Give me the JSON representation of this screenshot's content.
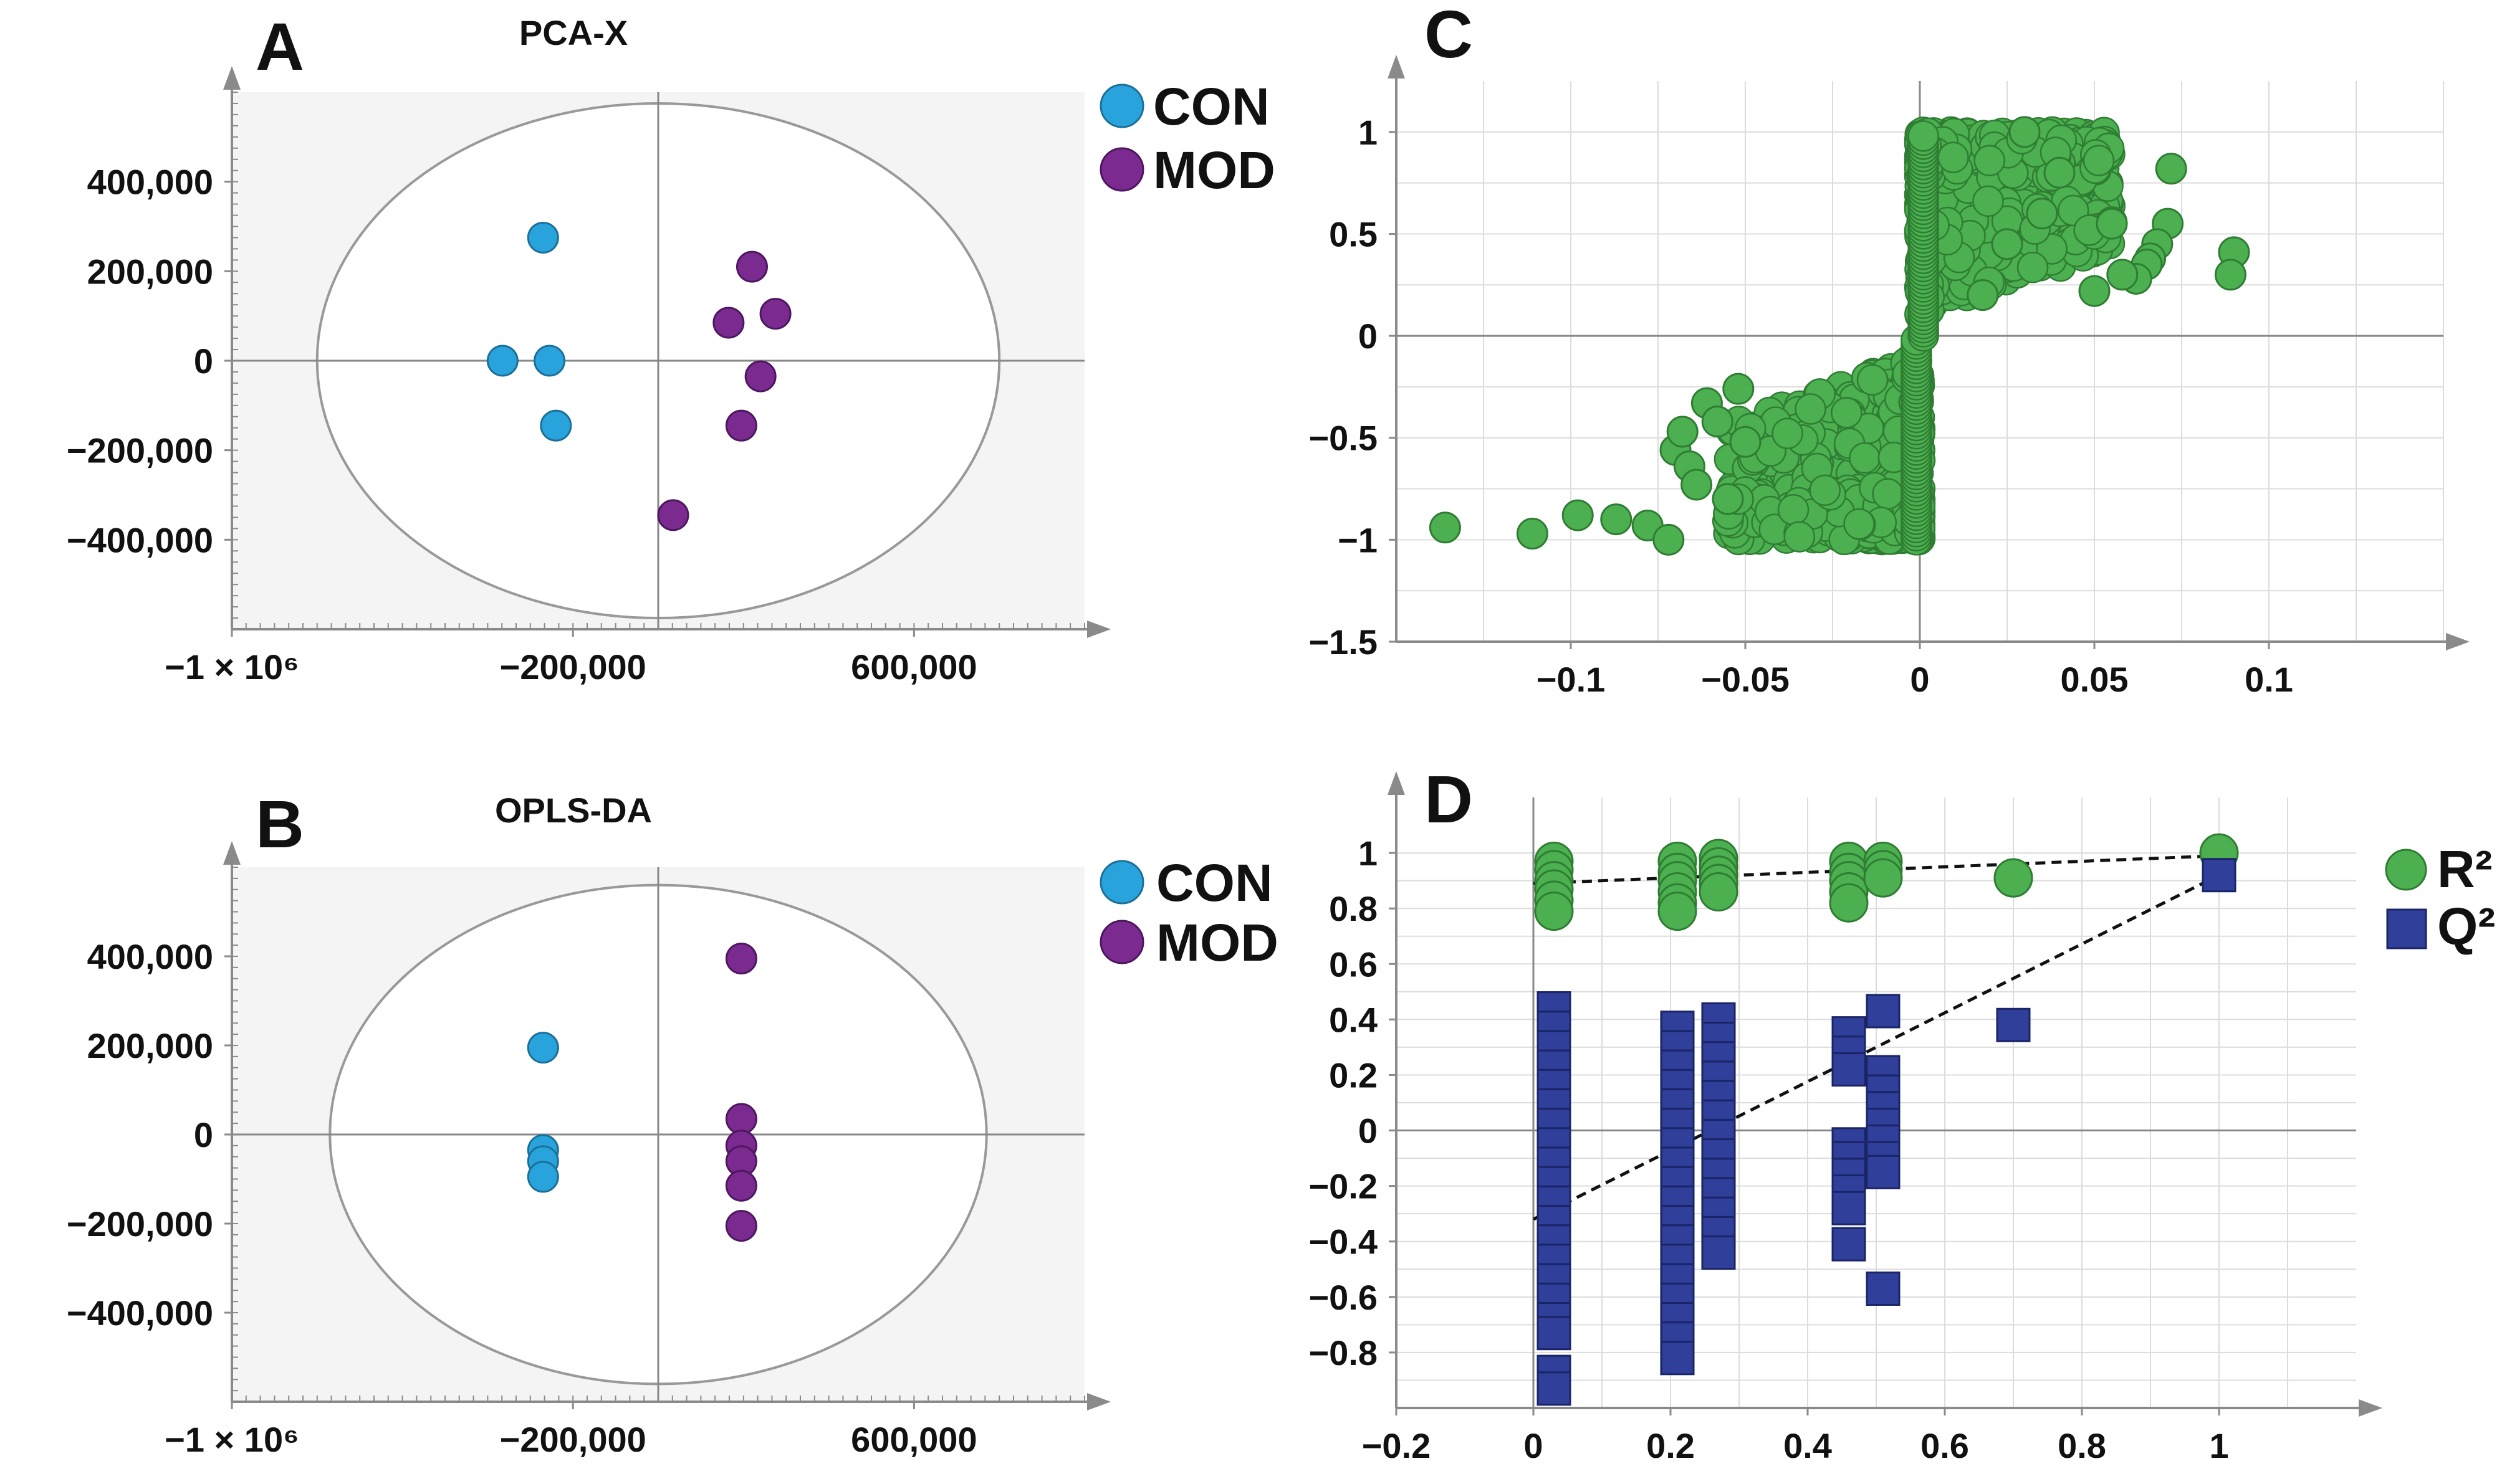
{
  "colors": {
    "con": "#29a3dc",
    "mod": "#7b2a8f",
    "green": "#4caf50",
    "blue": "#2f3f9a",
    "plot_bg": "#f4f4f4",
    "axis": "#8a8a8a"
  },
  "chart_data": [
    {
      "id": "A",
      "letter": "A",
      "type": "scatter",
      "title": "PCA-X",
      "xlim": [
        -1000000,
        1000000
      ],
      "ylim": [
        -600000,
        600000
      ],
      "xticks": [
        {
          "v": -1000000,
          "label": "−1 × 10⁶"
        },
        {
          "v": -200000,
          "label": "−200,000"
        },
        {
          "v": 600000,
          "label": "600,000"
        }
      ],
      "yticks": [
        {
          "v": 400000,
          "label": "400,000"
        },
        {
          "v": 200000,
          "label": "200,000"
        },
        {
          "v": 0,
          "label": "0"
        },
        {
          "v": -200000,
          "label": "−200,000"
        },
        {
          "v": -400000,
          "label": "−400,000"
        }
      ],
      "ellipse": {
        "rx": 800000,
        "ry": 575000
      },
      "legend": [
        "CON",
        "MOD"
      ],
      "series": [
        {
          "name": "CON",
          "points": [
            [
              -270000,
              275000
            ],
            [
              -365000,
              0
            ],
            [
              -255000,
              0
            ],
            [
              -240000,
              -145000
            ]
          ]
        },
        {
          "name": "MOD",
          "points": [
            [
              220000,
              210000
            ],
            [
              165000,
              85000
            ],
            [
              275000,
              105000
            ],
            [
              240000,
              -35000
            ],
            [
              195000,
              -145000
            ],
            [
              35000,
              -345000
            ]
          ]
        }
      ]
    },
    {
      "id": "B",
      "letter": "B",
      "type": "scatter",
      "title": "OPLS-DA",
      "xlim": [
        -1000000,
        1000000
      ],
      "ylim": [
        -600000,
        600000
      ],
      "xticks": [
        {
          "v": -1000000,
          "label": "−1 × 10⁶"
        },
        {
          "v": -200000,
          "label": "−200,000"
        },
        {
          "v": 600000,
          "label": "600,000"
        }
      ],
      "yticks": [
        {
          "v": 400000,
          "label": "400,000"
        },
        {
          "v": 200000,
          "label": "200,000"
        },
        {
          "v": 0,
          "label": "0"
        },
        {
          "v": -200000,
          "label": "−200,000"
        },
        {
          "v": -400000,
          "label": "−400,000"
        }
      ],
      "ellipse": {
        "rx": 770000,
        "ry": 560000
      },
      "legend": [
        "CON",
        "MOD"
      ],
      "series": [
        {
          "name": "CON",
          "points": [
            [
              -270000,
              195000
            ],
            [
              -270000,
              -35000
            ],
            [
              -270000,
              -60000
            ],
            [
              -270000,
              -95000
            ]
          ]
        },
        {
          "name": "MOD",
          "points": [
            [
              195000,
              395000
            ],
            [
              195000,
              35000
            ],
            [
              195000,
              -25000
            ],
            [
              195000,
              -60000
            ],
            [
              195000,
              -115000
            ],
            [
              195000,
              -205000
            ]
          ]
        }
      ]
    },
    {
      "id": "C",
      "letter": "C",
      "type": "scatter",
      "title": "",
      "xlim": [
        -0.15,
        0.15
      ],
      "ylim": [
        -1.5,
        1.25
      ],
      "xticks": [
        {
          "v": -0.1,
          "label": "−0.1"
        },
        {
          "v": -0.05,
          "label": "−0.05"
        },
        {
          "v": 0,
          "label": "0"
        },
        {
          "v": 0.05,
          "label": "0.05"
        },
        {
          "v": 0.1,
          "label": "0.1"
        }
      ],
      "yticks": [
        {
          "v": 1,
          "label": "1"
        },
        {
          "v": 0.5,
          "label": "0.5"
        },
        {
          "v": 0,
          "label": "0"
        },
        {
          "v": -0.5,
          "label": "−0.5"
        },
        {
          "v": -1,
          "label": "−1"
        },
        {
          "v": -1.5,
          "label": "−1.5"
        }
      ],
      "xgrid": [
        -0.125,
        -0.1,
        -0.075,
        -0.05,
        -0.025,
        0.025,
        0.05,
        0.075,
        0.1,
        0.125,
        0.15
      ],
      "ygrid": [
        1,
        0.75,
        0.5,
        0.25,
        -0.25,
        -0.5,
        -0.75,
        -1,
        -1.25
      ],
      "cloud_count": 1400,
      "series": [
        {
          "name": "loadings",
          "points": [
            [
              -0.136,
              -0.94
            ],
            [
              -0.111,
              -0.97
            ],
            [
              -0.098,
              -0.88
            ],
            [
              -0.087,
              -0.9
            ],
            [
              -0.078,
              -0.93
            ],
            [
              -0.072,
              -1.0
            ],
            [
              -0.07,
              -0.56
            ],
            [
              -0.068,
              -0.47
            ],
            [
              -0.066,
              -0.64
            ],
            [
              -0.064,
              -0.73
            ],
            [
              -0.061,
              -0.33
            ],
            [
              -0.058,
              -0.42
            ],
            [
              -0.055,
              -0.8
            ],
            [
              -0.052,
              -0.26
            ],
            [
              -0.05,
              -0.52
            ],
            [
              0.072,
              0.82
            ],
            [
              0.071,
              0.55
            ],
            [
              0.068,
              0.45
            ],
            [
              0.066,
              0.38
            ],
            [
              0.065,
              0.35
            ],
            [
              0.062,
              0.28
            ],
            [
              0.058,
              0.3
            ],
            [
              0.09,
              0.41
            ],
            [
              0.089,
              0.3
            ],
            [
              0.055,
              0.55
            ],
            [
              0.05,
              0.22
            ],
            [
              0.04,
              0.8
            ],
            [
              0.035,
              0.6
            ],
            [
              0.03,
              1.0
            ],
            [
              0.025,
              0.45
            ],
            [
              0.018,
              0.2
            ]
          ]
        }
      ]
    },
    {
      "id": "D",
      "letter": "D",
      "type": "scatter",
      "title": "",
      "xlim": [
        -0.2,
        1.2
      ],
      "ylim": [
        -1.0,
        1.2
      ],
      "xticks": [
        {
          "v": -0.2,
          "label": "−0.2"
        },
        {
          "v": 0,
          "label": "0"
        },
        {
          "v": 0.2,
          "label": "0.2"
        },
        {
          "v": 0.4,
          "label": "0.4"
        },
        {
          "v": 0.6,
          "label": "0.6"
        },
        {
          "v": 0.8,
          "label": "0.8"
        },
        {
          "v": 1,
          "label": "1"
        }
      ],
      "yticks": [
        {
          "v": 1,
          "label": "1"
        },
        {
          "v": 0.8,
          "label": "0.8"
        },
        {
          "v": 0.6,
          "label": "0.6"
        },
        {
          "v": 0.4,
          "label": "0.4"
        },
        {
          "v": 0.2,
          "label": "0.2"
        },
        {
          "v": 0,
          "label": "0"
        },
        {
          "v": -0.2,
          "label": "−0.2"
        },
        {
          "v": -0.4,
          "label": "−0.4"
        },
        {
          "v": -0.6,
          "label": "−0.6"
        },
        {
          "v": -0.8,
          "label": "−0.8"
        }
      ],
      "xgrid": [
        0.1,
        0.2,
        0.3,
        0.4,
        0.5,
        0.6,
        0.7,
        0.8,
        0.9,
        1.0,
        1.1
      ],
      "ygrid": [
        1,
        0.9,
        0.8,
        0.7,
        0.6,
        0.5,
        0.4,
        0.3,
        0.2,
        0.1,
        -0.1,
        -0.2,
        -0.3,
        -0.4,
        -0.5,
        -0.6,
        -0.7,
        -0.8,
        -0.9
      ],
      "legend": [
        "R²",
        "Q²"
      ],
      "series": [
        {
          "name": "R2",
          "points": [
            [
              0.03,
              0.97
            ],
            [
              0.03,
              0.94
            ],
            [
              0.03,
              0.9
            ],
            [
              0.03,
              0.87
            ],
            [
              0.03,
              0.83
            ],
            [
              0.03,
              0.79
            ],
            [
              0.21,
              0.97
            ],
            [
              0.21,
              0.93
            ],
            [
              0.21,
              0.9
            ],
            [
              0.21,
              0.86
            ],
            [
              0.21,
              0.82
            ],
            [
              0.21,
              0.79
            ],
            [
              0.27,
              0.98
            ],
            [
              0.27,
              0.95
            ],
            [
              0.27,
              0.92
            ],
            [
              0.27,
              0.89
            ],
            [
              0.27,
              0.86
            ],
            [
              0.46,
              0.97
            ],
            [
              0.46,
              0.93
            ],
            [
              0.46,
              0.9
            ],
            [
              0.46,
              0.86
            ],
            [
              0.46,
              0.82
            ],
            [
              0.51,
              0.97
            ],
            [
              0.51,
              0.94
            ],
            [
              0.51,
              0.91
            ],
            [
              0.7,
              0.91
            ],
            [
              1.0,
              1.0
            ]
          ]
        },
        {
          "name": "Q2",
          "points": [
            [
              0.03,
              0.44
            ],
            [
              0.03,
              0.37
            ],
            [
              0.03,
              0.3
            ],
            [
              0.03,
              0.23
            ],
            [
              0.03,
              0.16
            ],
            [
              0.03,
              0.09
            ],
            [
              0.03,
              0.02
            ],
            [
              0.03,
              -0.05
            ],
            [
              0.03,
              -0.12
            ],
            [
              0.03,
              -0.19
            ],
            [
              0.03,
              -0.26
            ],
            [
              0.03,
              -0.33
            ],
            [
              0.03,
              -0.4
            ],
            [
              0.03,
              -0.47
            ],
            [
              0.03,
              -0.54
            ],
            [
              0.03,
              -0.61
            ],
            [
              0.03,
              -0.68
            ],
            [
              0.03,
              -0.73
            ],
            [
              0.03,
              -0.87
            ],
            [
              0.03,
              -0.93
            ],
            [
              0.21,
              0.37
            ],
            [
              0.21,
              0.3
            ],
            [
              0.21,
              0.23
            ],
            [
              0.21,
              0.16
            ],
            [
              0.21,
              0.09
            ],
            [
              0.21,
              0.02
            ],
            [
              0.21,
              -0.05
            ],
            [
              0.21,
              -0.12
            ],
            [
              0.21,
              -0.19
            ],
            [
              0.21,
              -0.26
            ],
            [
              0.21,
              -0.33
            ],
            [
              0.21,
              -0.4
            ],
            [
              0.21,
              -0.47
            ],
            [
              0.21,
              -0.54
            ],
            [
              0.21,
              -0.61
            ],
            [
              0.21,
              -0.68
            ],
            [
              0.21,
              -0.75
            ],
            [
              0.21,
              -0.82
            ],
            [
              0.27,
              0.4
            ],
            [
              0.27,
              0.33
            ],
            [
              0.27,
              0.26
            ],
            [
              0.27,
              0.19
            ],
            [
              0.27,
              0.12
            ],
            [
              0.27,
              0.05
            ],
            [
              0.27,
              -0.02
            ],
            [
              0.27,
              -0.09
            ],
            [
              0.27,
              -0.16
            ],
            [
              0.27,
              -0.23
            ],
            [
              0.27,
              -0.3
            ],
            [
              0.27,
              -0.37
            ],
            [
              0.27,
              -0.44
            ],
            [
              0.46,
              0.35
            ],
            [
              0.46,
              0.28
            ],
            [
              0.46,
              0.22
            ],
            [
              0.46,
              -0.05
            ],
            [
              0.46,
              -0.1
            ],
            [
              0.46,
              -0.16
            ],
            [
              0.46,
              -0.22
            ],
            [
              0.46,
              -0.28
            ],
            [
              0.46,
              -0.41
            ],
            [
              0.51,
              0.43
            ],
            [
              0.51,
              0.21
            ],
            [
              0.51,
              0.14
            ],
            [
              0.51,
              0.08
            ],
            [
              0.51,
              0.02
            ],
            [
              0.51,
              -0.04
            ],
            [
              0.51,
              -0.1
            ],
            [
              0.51,
              -0.15
            ],
            [
              0.51,
              -0.57
            ],
            [
              0.7,
              0.38
            ],
            [
              1.0,
              0.92
            ]
          ]
        }
      ],
      "trend_lines": [
        {
          "name": "R2-trend",
          "from": [
            0,
            0.89
          ],
          "to": [
            1.0,
            0.99
          ]
        },
        {
          "name": "Q2-trend",
          "from": [
            0,
            -0.32
          ],
          "to": [
            1.0,
            0.92
          ]
        }
      ]
    }
  ]
}
